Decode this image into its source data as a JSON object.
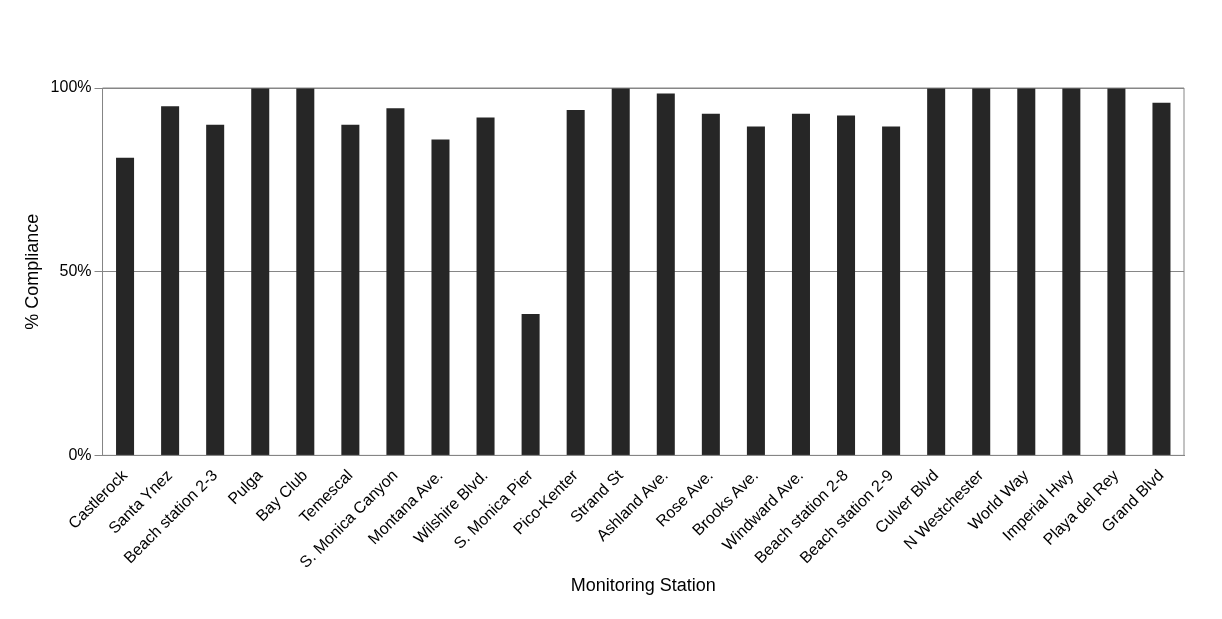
{
  "chart_data": {
    "type": "bar",
    "xlabel": "Monitoring Station",
    "ylabel": "% Compliance",
    "categories": [
      "Castlerock",
      "Santa Ynez",
      "Beach station 2-3",
      "Pulga",
      "Bay Club",
      "Temescal",
      "S. Monica Canyon",
      "Montana Ave.",
      "Wilshire Blvd.",
      "S. Monica Pier",
      "Pico-Kenter",
      "Strand St",
      "Ashland Ave.",
      "Rose Ave.",
      "Brooks Ave.",
      "Windward Ave.",
      "Beach station 2-8",
      "Beach station 2-9",
      "Culver Blvd",
      "N Westchester",
      "World Way",
      "Imperial Hwy",
      "Playa del Rey",
      "Grand Blvd"
    ],
    "values": [
      81,
      95,
      90,
      100,
      100,
      90,
      94.5,
      86,
      92,
      38.5,
      94,
      100,
      98.5,
      93,
      89.5,
      93,
      92.5,
      89.5,
      100,
      100,
      100,
      100,
      100,
      96
    ],
    "color": "#262626",
    "ylim": [
      0,
      100
    ],
    "yticks": [
      {
        "value": 0,
        "label": "0%"
      },
      {
        "value": 50,
        "label": "50%"
      },
      {
        "value": 100,
        "label": "100%"
      }
    ],
    "grid": "y",
    "legend": false
  }
}
